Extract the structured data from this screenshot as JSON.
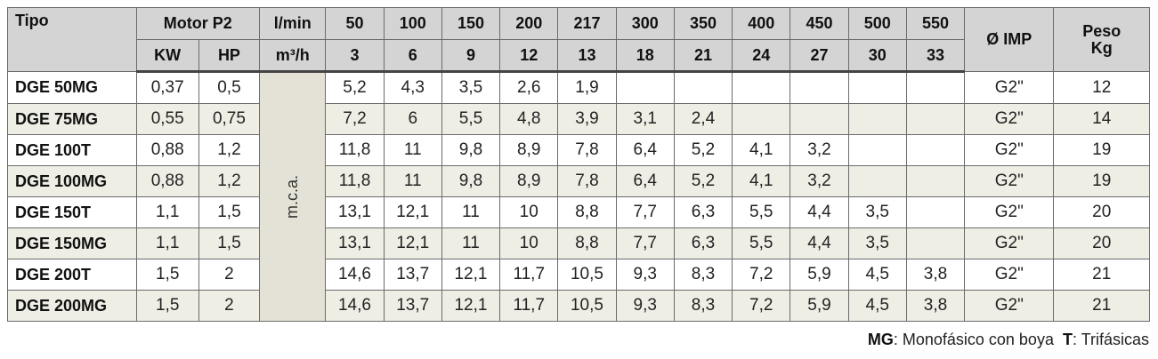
{
  "table": {
    "header": {
      "tipo": "Tipo",
      "motor": "Motor P2",
      "kw": "KW",
      "hp": "HP",
      "lmin": "l/min",
      "m3h": "m³/h",
      "flows": [
        "50",
        "100",
        "150",
        "200",
        "217",
        "300",
        "350",
        "400",
        "450",
        "500",
        "550"
      ],
      "heads": [
        "3",
        "6",
        "9",
        "12",
        "13",
        "18",
        "21",
        "24",
        "27",
        "30",
        "33"
      ],
      "imp": "Ø IMP",
      "peso": "Peso\nKg"
    },
    "unit": "m.c.a.",
    "rows": [
      {
        "tipo": "DGE 50MG",
        "kw": "0,37",
        "hp": "0,5",
        "values": [
          "5,2",
          "4,3",
          "3,5",
          "2,6",
          "1,9"
        ],
        "imp": "G2\"",
        "peso": "12"
      },
      {
        "tipo": "DGE 75MG",
        "kw": "0,55",
        "hp": "0,75",
        "values": [
          "7,2",
          "6",
          "5,5",
          "4,8",
          "3,9",
          "3,1",
          "2,4"
        ],
        "imp": "G2\"",
        "peso": "14"
      },
      {
        "tipo": "DGE 100T",
        "kw": "0,88",
        "hp": "1,2",
        "values": [
          "11,8",
          "11",
          "9,8",
          "8,9",
          "7,8",
          "6,4",
          "5,2",
          "4,1",
          "3,2"
        ],
        "imp": "G2\"",
        "peso": "19"
      },
      {
        "tipo": "DGE 100MG",
        "kw": "0,88",
        "hp": "1,2",
        "values": [
          "11,8",
          "11",
          "9,8",
          "8,9",
          "7,8",
          "6,4",
          "5,2",
          "4,1",
          "3,2"
        ],
        "imp": "G2\"",
        "peso": "19"
      },
      {
        "tipo": "DGE 150T",
        "kw": "1,1",
        "hp": "1,5",
        "values": [
          "13,1",
          "12,1",
          "11",
          "10",
          "8,8",
          "7,7",
          "6,3",
          "5,5",
          "4,4",
          "3,5"
        ],
        "imp": "G2\"",
        "peso": "20"
      },
      {
        "tipo": "DGE 150MG",
        "kw": "1,1",
        "hp": "1,5",
        "values": [
          "13,1",
          "12,1",
          "11",
          "10",
          "8,8",
          "7,7",
          "6,3",
          "5,5",
          "4,4",
          "3,5"
        ],
        "imp": "G2\"",
        "peso": "20"
      },
      {
        "tipo": "DGE 200T",
        "kw": "1,5",
        "hp": "2",
        "values": [
          "14,6",
          "13,7",
          "12,1",
          "11,7",
          "10,5",
          "9,3",
          "8,3",
          "7,2",
          "5,9",
          "4,5",
          "3,8"
        ],
        "imp": "G2\"",
        "peso": "21"
      },
      {
        "tipo": "DGE 200MG",
        "kw": "1,5",
        "hp": "2",
        "values": [
          "14,6",
          "13,7",
          "12,1",
          "11,7",
          "10,5",
          "9,3",
          "8,3",
          "7,2",
          "5,9",
          "4,5",
          "3,8"
        ],
        "imp": "G2\"",
        "peso": "21"
      }
    ]
  },
  "legend": {
    "mg": "MG",
    "mg_text": ": Monofásico con boya",
    "t": "T",
    "t_text": ": Trifásicas"
  }
}
